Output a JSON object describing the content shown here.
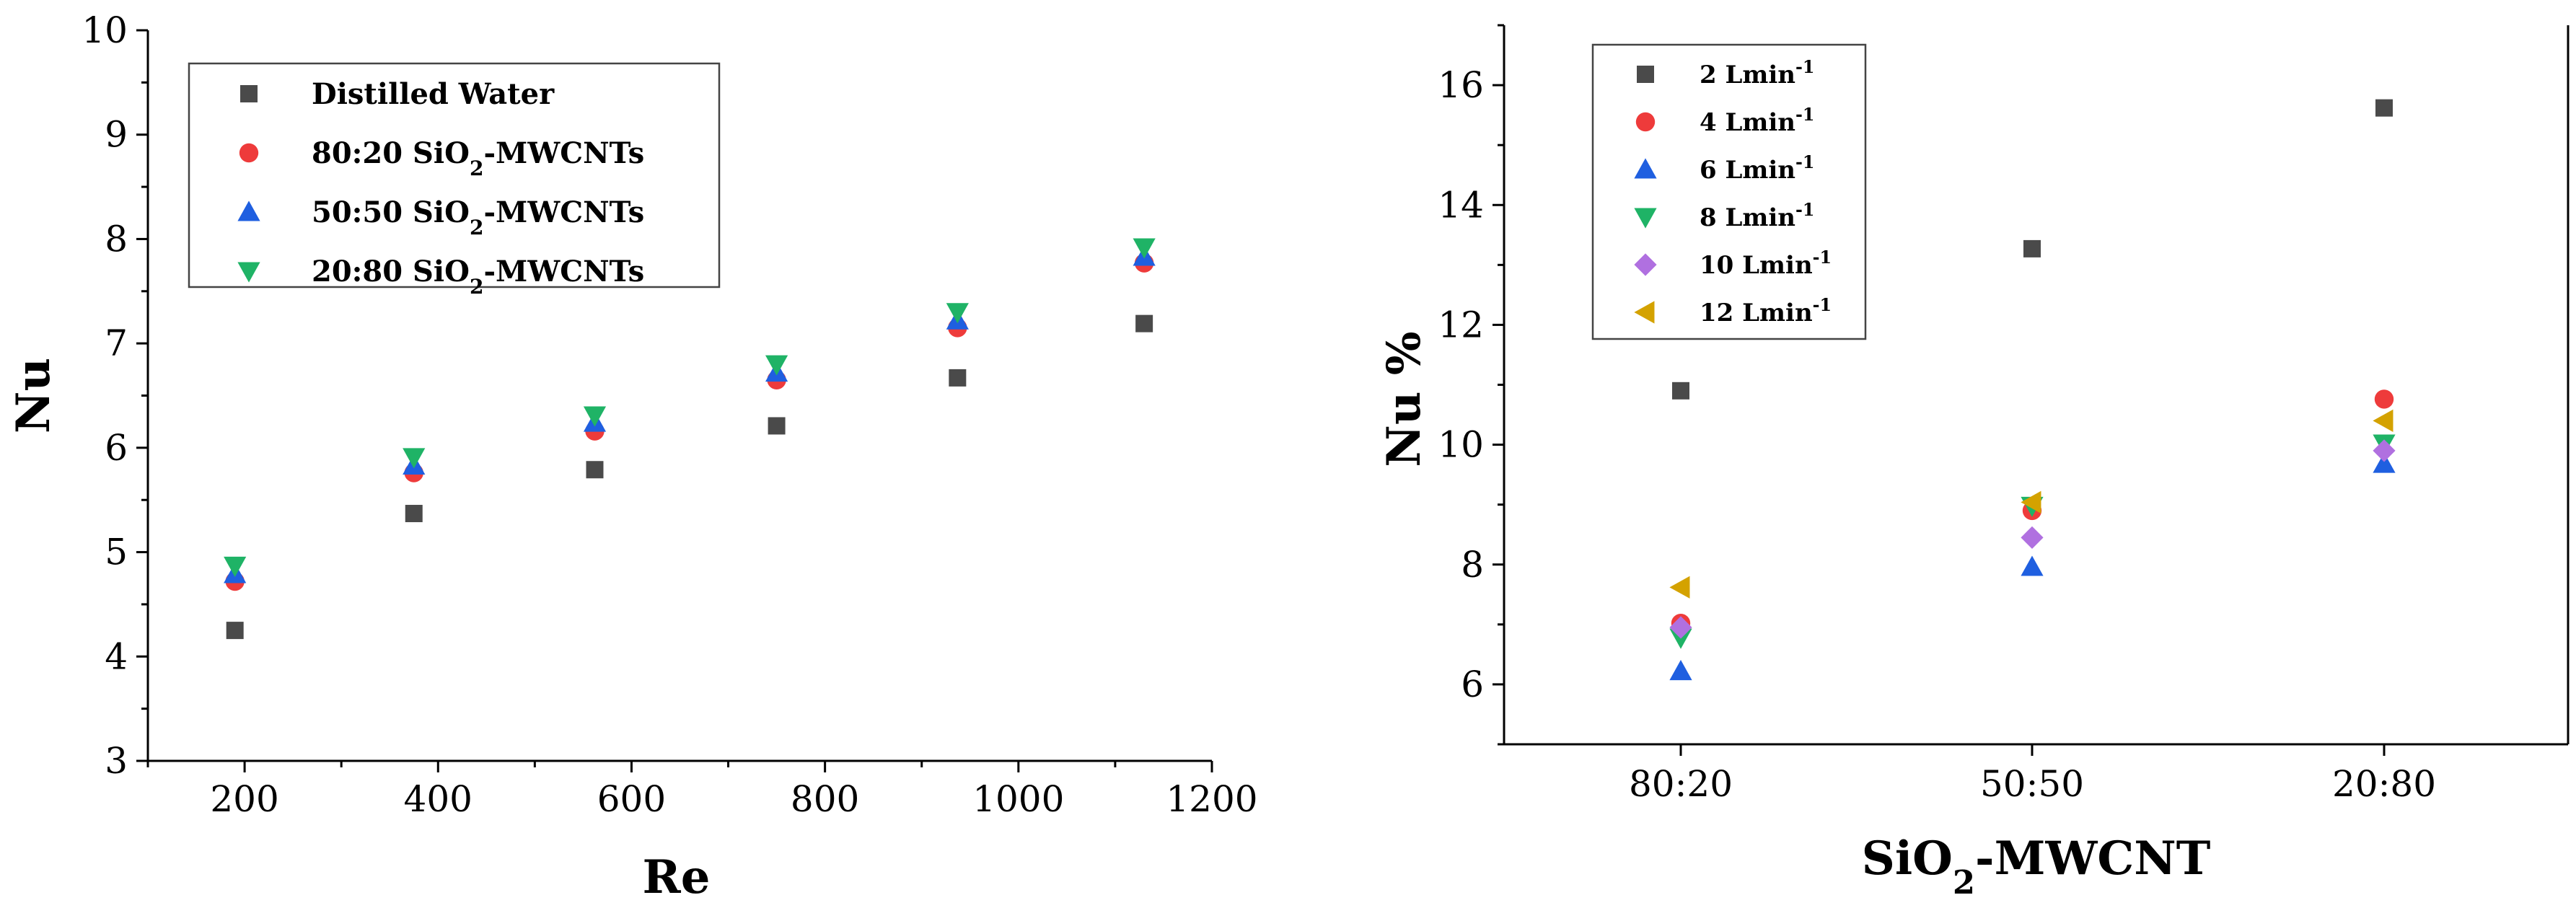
{
  "chart_data": [
    {
      "type": "scatter",
      "title": "",
      "xlabel": "Re",
      "ylabel": "Nu",
      "xlim": [
        100,
        1200
      ],
      "ylim": [
        3,
        10
      ],
      "xticks": [
        200,
        400,
        600,
        800,
        1000,
        1200
      ],
      "yticks": [
        3,
        4,
        5,
        6,
        7,
        8,
        9,
        10
      ],
      "legend_position": "top-left",
      "grid": false,
      "x": [
        190,
        375,
        562,
        750,
        937,
        1130
      ],
      "series": [
        {
          "name": "Distilled Water",
          "name_base": "Distilled Water",
          "name_sub": "",
          "name_rest": "",
          "marker": "square",
          "color": "#4a4a4a",
          "values": [
            4.25,
            5.37,
            5.79,
            6.21,
            6.67,
            7.19
          ]
        },
        {
          "name": "80:20 SiO2-MWCNTs",
          "name_base": "80:20 SiO",
          "name_sub": "2",
          "name_rest": "-MWCNTs",
          "marker": "circle",
          "color": "#ee3b3b",
          "values": [
            4.72,
            5.76,
            6.16,
            6.65,
            7.15,
            7.77
          ]
        },
        {
          "name": "50:50 SiO2-MWCNTs",
          "name_base": "50:50 SiO",
          "name_sub": "2",
          "name_rest": "-MWCNTs",
          "marker": "triangle-up",
          "color": "#1f5fe0",
          "values": [
            4.79,
            5.83,
            6.24,
            6.72,
            7.22,
            7.83
          ]
        },
        {
          "name": "20:80 SiO2-MWCNTs",
          "name_base": "20:80 SiO",
          "name_sub": "2",
          "name_rest": "-MWCNTs",
          "marker": "triangle-down",
          "color": "#1fb366",
          "values": [
            4.87,
            5.91,
            6.31,
            6.8,
            7.3,
            7.92
          ]
        }
      ]
    },
    {
      "type": "scatter",
      "title": "",
      "xlabel": "SiO2-MWCNT",
      "xlabel_base": "SiO",
      "xlabel_sub": "2",
      "xlabel_rest": "-MWCNT",
      "ylabel": "Nu %",
      "categories": [
        "80:20",
        "50:50",
        "20:80"
      ],
      "ylim": [
        5,
        17
      ],
      "yticks": [
        6,
        8,
        10,
        12,
        14,
        16
      ],
      "legend_position": "top-left",
      "grid": false,
      "series": [
        {
          "name": "2 Lmin-1",
          "name_base": "2 Lmin",
          "name_sup": "-1",
          "marker": "square",
          "color": "#4a4a4a",
          "values": [
            10.9,
            13.27,
            15.62
          ]
        },
        {
          "name": "4 Lmin-1",
          "name_base": "4 Lmin",
          "name_sup": "-1",
          "marker": "circle",
          "color": "#ee3b3b",
          "values": [
            7.02,
            8.9,
            10.76
          ]
        },
        {
          "name": "6 Lmin-1",
          "name_base": "6 Lmin",
          "name_sup": "-1",
          "marker": "triangle-up",
          "color": "#1f5fe0",
          "values": [
            6.22,
            7.96,
            9.68
          ]
        },
        {
          "name": "8 Lmin-1",
          "name_base": "8 Lmin",
          "name_sup": "-1",
          "marker": "triangle-down",
          "color": "#1fb366",
          "values": [
            6.78,
            8.98,
            10.02
          ]
        },
        {
          "name": "10 Lmin-1",
          "name_base": "10 Lmin",
          "name_sup": "-1",
          "marker": "diamond",
          "color": "#b070e0",
          "values": [
            6.95,
            8.45,
            9.9
          ]
        },
        {
          "name": "12 Lmin-1",
          "name_base": "12 Lmin",
          "name_sup": "-1",
          "marker": "triangle-left",
          "color": "#d4a200",
          "values": [
            7.62,
            9.04,
            10.4
          ]
        }
      ]
    }
  ]
}
